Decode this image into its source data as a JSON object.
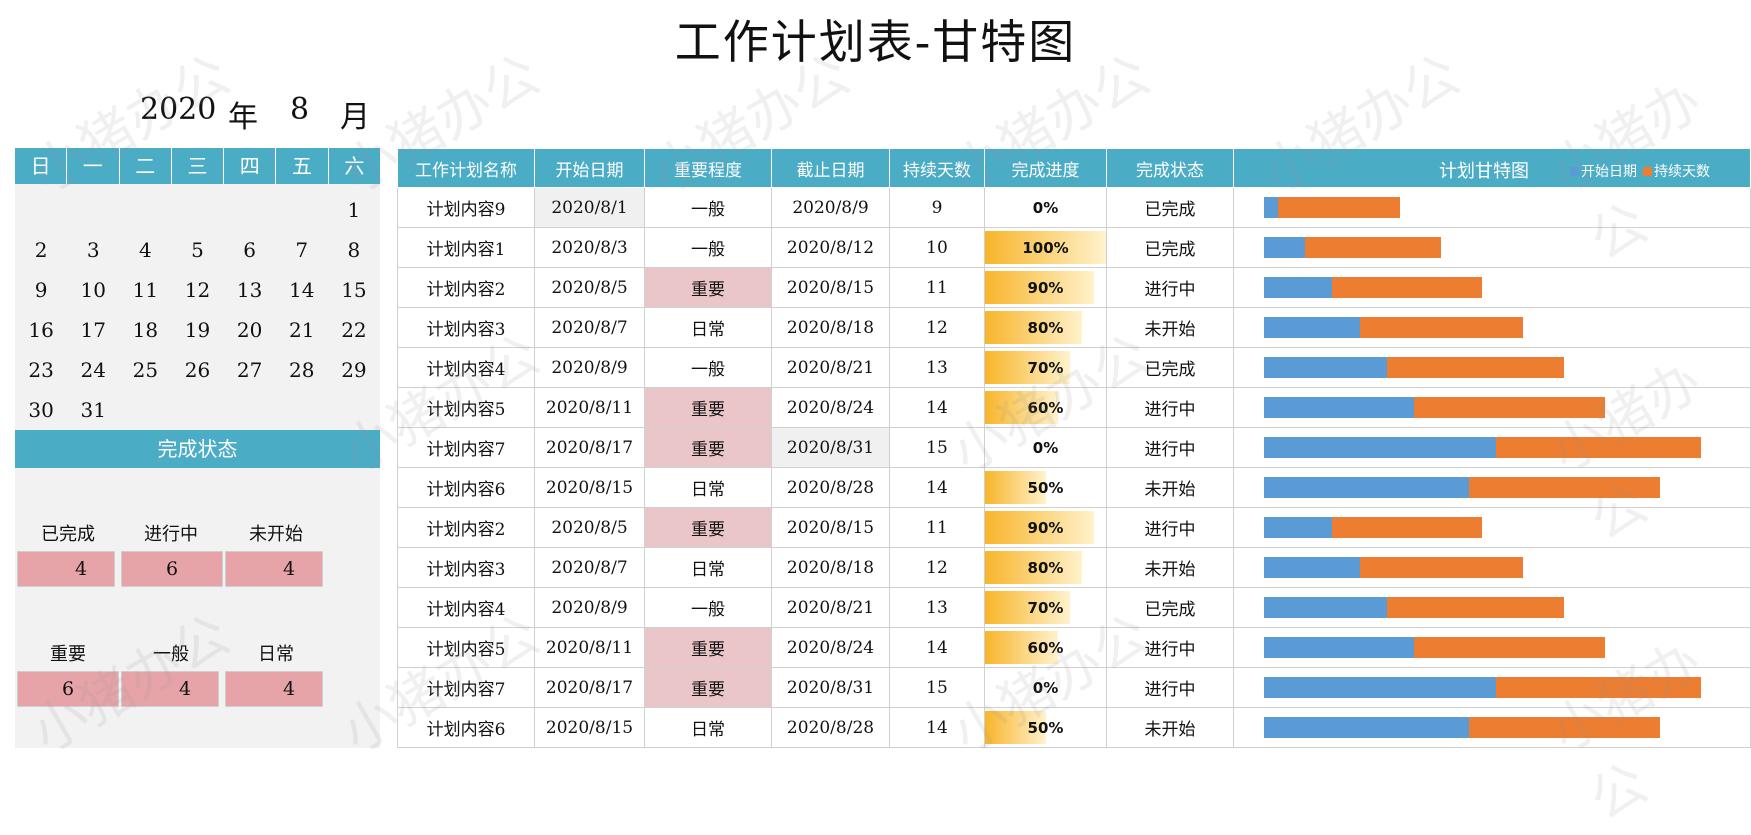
{
  "title": "工作计划表-甘特图",
  "calendar": {
    "year": "2020",
    "year_unit": "年",
    "month": "8",
    "month_unit": "月",
    "weekdays": [
      "日",
      "一",
      "二",
      "三",
      "四",
      "五",
      "六"
    ],
    "cells": [
      "",
      "",
      "",
      "",
      "",
      "",
      "1",
      "2",
      "3",
      "4",
      "5",
      "6",
      "7",
      "8",
      "9",
      "10",
      "11",
      "12",
      "13",
      "14",
      "15",
      "16",
      "17",
      "18",
      "19",
      "20",
      "21",
      "22",
      "23",
      "24",
      "25",
      "26",
      "27",
      "28",
      "29",
      "30",
      "31",
      "",
      "",
      "",
      "",
      ""
    ]
  },
  "status_panel": {
    "header": "完成状态",
    "status_labels": [
      "已完成",
      "进行中",
      "未开始"
    ],
    "status_values": [
      "4",
      "6",
      "4"
    ],
    "importance_labels": [
      "重要",
      "一般",
      "日常"
    ],
    "importance_values": [
      "6",
      "4",
      "4"
    ]
  },
  "table": {
    "headers": [
      "工作计划名称",
      "开始日期",
      "重要程度",
      "截止日期",
      "持续天数",
      "完成进度",
      "完成状态"
    ],
    "gantt_header": "计划甘特图",
    "legend": [
      {
        "label": "开始日期",
        "color": "#5b9bd5"
      },
      {
        "label": "持续天数",
        "color": "#ed7d31"
      }
    ],
    "rows": [
      {
        "name": "计划内容9",
        "start": "2020/8/1",
        "importance": "一般",
        "end": "2020/8/9",
        "days": "9",
        "progress": "0%",
        "status": "已完成"
      },
      {
        "name": "计划内容1",
        "start": "2020/8/3",
        "importance": "一般",
        "end": "2020/8/12",
        "days": "10",
        "progress": "100%",
        "status": "已完成"
      },
      {
        "name": "计划内容2",
        "start": "2020/8/5",
        "importance": "重要",
        "end": "2020/8/15",
        "days": "11",
        "progress": "90%",
        "status": "进行中"
      },
      {
        "name": "计划内容3",
        "start": "2020/8/7",
        "importance": "日常",
        "end": "2020/8/18",
        "days": "12",
        "progress": "80%",
        "status": "未开始"
      },
      {
        "name": "计划内容4",
        "start": "2020/8/9",
        "importance": "一般",
        "end": "2020/8/21",
        "days": "13",
        "progress": "70%",
        "status": "已完成"
      },
      {
        "name": "计划内容5",
        "start": "2020/8/11",
        "importance": "重要",
        "end": "2020/8/24",
        "days": "14",
        "progress": "60%",
        "status": "进行中"
      },
      {
        "name": "计划内容7",
        "start": "2020/8/17",
        "importance": "重要",
        "end": "2020/8/31",
        "days": "15",
        "progress": "0%",
        "status": "进行中"
      },
      {
        "name": "计划内容6",
        "start": "2020/8/15",
        "importance": "日常",
        "end": "2020/8/28",
        "days": "14",
        "progress": "50%",
        "status": "未开始"
      },
      {
        "name": "计划内容2",
        "start": "2020/8/5",
        "importance": "重要",
        "end": "2020/8/15",
        "days": "11",
        "progress": "90%",
        "status": "进行中"
      },
      {
        "name": "计划内容3",
        "start": "2020/8/7",
        "importance": "日常",
        "end": "2020/8/18",
        "days": "12",
        "progress": "80%",
        "status": "未开始"
      },
      {
        "name": "计划内容4",
        "start": "2020/8/9",
        "importance": "一般",
        "end": "2020/8/21",
        "days": "13",
        "progress": "70%",
        "status": "已完成"
      },
      {
        "name": "计划内容5",
        "start": "2020/8/11",
        "importance": "重要",
        "end": "2020/8/24",
        "days": "14",
        "progress": "60%",
        "status": "进行中"
      },
      {
        "name": "计划内容7",
        "start": "2020/8/17",
        "importance": "重要",
        "end": "2020/8/31",
        "days": "15",
        "progress": "0%",
        "status": "进行中"
      },
      {
        "name": "计划内容6",
        "start": "2020/8/15",
        "importance": "日常",
        "end": "2020/8/28",
        "days": "14",
        "progress": "50%",
        "status": "未开始"
      }
    ]
  },
  "colors": {
    "header": "#4bacc6",
    "important": "#ebc6c8",
    "stat_box": "#e6a4a9",
    "start_bar": "#5b9bd5",
    "duration_bar": "#ed7d31"
  },
  "watermark": "小猪办公"
}
